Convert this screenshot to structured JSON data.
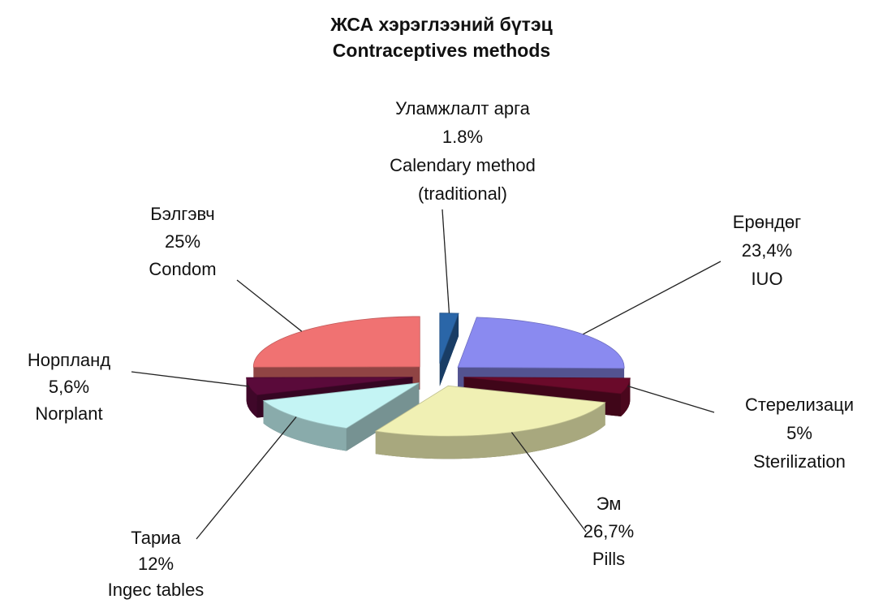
{
  "chart_data": {
    "type": "pie",
    "title": "ЖСА хэрэглээний бүтэц",
    "subtitle": "Contraceptives methods",
    "categories": [
      "Уламжлалт арга",
      "Ерөндөг",
      "Стерелизаци",
      "Эм",
      "Тариа",
      "Норпланд",
      "Бэлгэвч"
    ],
    "labels_en": [
      [
        "Calendary method",
        "(traditional)"
      ],
      [
        "IUO"
      ],
      [
        "Sterilization"
      ],
      [
        "Pills"
      ],
      [
        "Ingec tables"
      ],
      [
        "Norplant"
      ],
      [
        "Condom"
      ]
    ],
    "values": [
      1.8,
      23.4,
      5,
      26.7,
      12,
      5.6,
      25
    ],
    "value_labels": [
      "1.8%",
      "23,4%",
      "5%",
      "26,7%",
      "12%",
      "5,6%",
      "25%"
    ],
    "colors": [
      "#2a66a8",
      "#8a8af0",
      "#6a0a2a",
      "#f0f0b4",
      "#c4f4f4",
      "#5a0a3a",
      "#f07272"
    ]
  }
}
